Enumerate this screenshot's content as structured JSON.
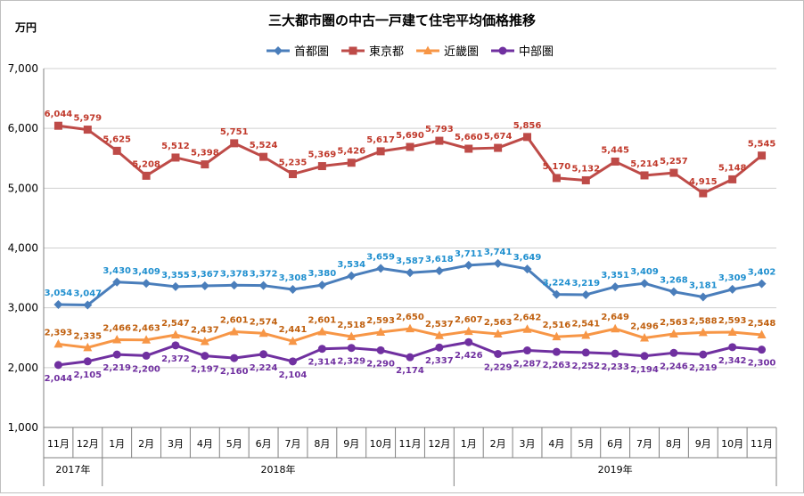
{
  "chart_data": {
    "type": "line",
    "title": "三大都市圏の中古一戸建て住宅平均価格推移",
    "ylabel": "万円",
    "ylim": [
      1000,
      7000
    ],
    "yticks": [
      "1,000",
      "2,000",
      "3,000",
      "4,000",
      "5,000",
      "6,000",
      "7,000"
    ],
    "grid": true,
    "legend_position": "top",
    "categories": [
      "11月",
      "12月",
      "1月",
      "2月",
      "3月",
      "4月",
      "5月",
      "6月",
      "7月",
      "8月",
      "9月",
      "10月",
      "11月",
      "12月",
      "1月",
      "2月",
      "3月",
      "4月",
      "5月",
      "6月",
      "7月",
      "8月",
      "9月",
      "10月",
      "11月"
    ],
    "year_groups": [
      {
        "label": "2017年",
        "start": 0,
        "end": 1
      },
      {
        "label": "2018年",
        "start": 2,
        "end": 13
      },
      {
        "label": "2019年",
        "start": 14,
        "end": 24
      }
    ],
    "series": [
      {
        "name": "首都圏",
        "color": "#4a7ebb",
        "label_color": "#1f8fcf",
        "marker": "diamond",
        "label_pos": "above",
        "values": [
          3054,
          3047,
          3430,
          3409,
          3355,
          3367,
          3378,
          3372,
          3308,
          3380,
          3534,
          3659,
          3587,
          3618,
          3711,
          3741,
          3649,
          3224,
          3219,
          3351,
          3409,
          3268,
          3181,
          3309,
          3402
        ]
      },
      {
        "name": "東京都",
        "color": "#be4b48",
        "label_color": "#c0392b",
        "marker": "square",
        "label_pos": "above",
        "values": [
          6044,
          5979,
          5625,
          5208,
          5512,
          5398,
          5751,
          5524,
          5235,
          5369,
          5426,
          5617,
          5690,
          5793,
          5660,
          5674,
          5856,
          5170,
          5132,
          5445,
          5214,
          5257,
          4915,
          5148,
          5545
        ]
      },
      {
        "name": "近畿圏",
        "color": "#f79646",
        "label_color": "#c0600f",
        "marker": "triangle",
        "label_pos": "above",
        "values": [
          2393,
          2335,
          2466,
          2463,
          2547,
          2437,
          2601,
          2574,
          2441,
          2601,
          2518,
          2593,
          2650,
          2537,
          2607,
          2563,
          2642,
          2516,
          2541,
          2649,
          2496,
          2563,
          2588,
          2593,
          2548
        ]
      },
      {
        "name": "中部圏",
        "color": "#7030a0",
        "label_color": "#7030a0",
        "marker": "circle",
        "label_pos": "below",
        "values": [
          2044,
          2105,
          2219,
          2200,
          2372,
          2197,
          2160,
          2224,
          2104,
          2314,
          2329,
          2290,
          2174,
          2337,
          2426,
          2229,
          2287,
          2263,
          2252,
          2233,
          2194,
          2246,
          2219,
          2342,
          2300
        ]
      }
    ]
  }
}
